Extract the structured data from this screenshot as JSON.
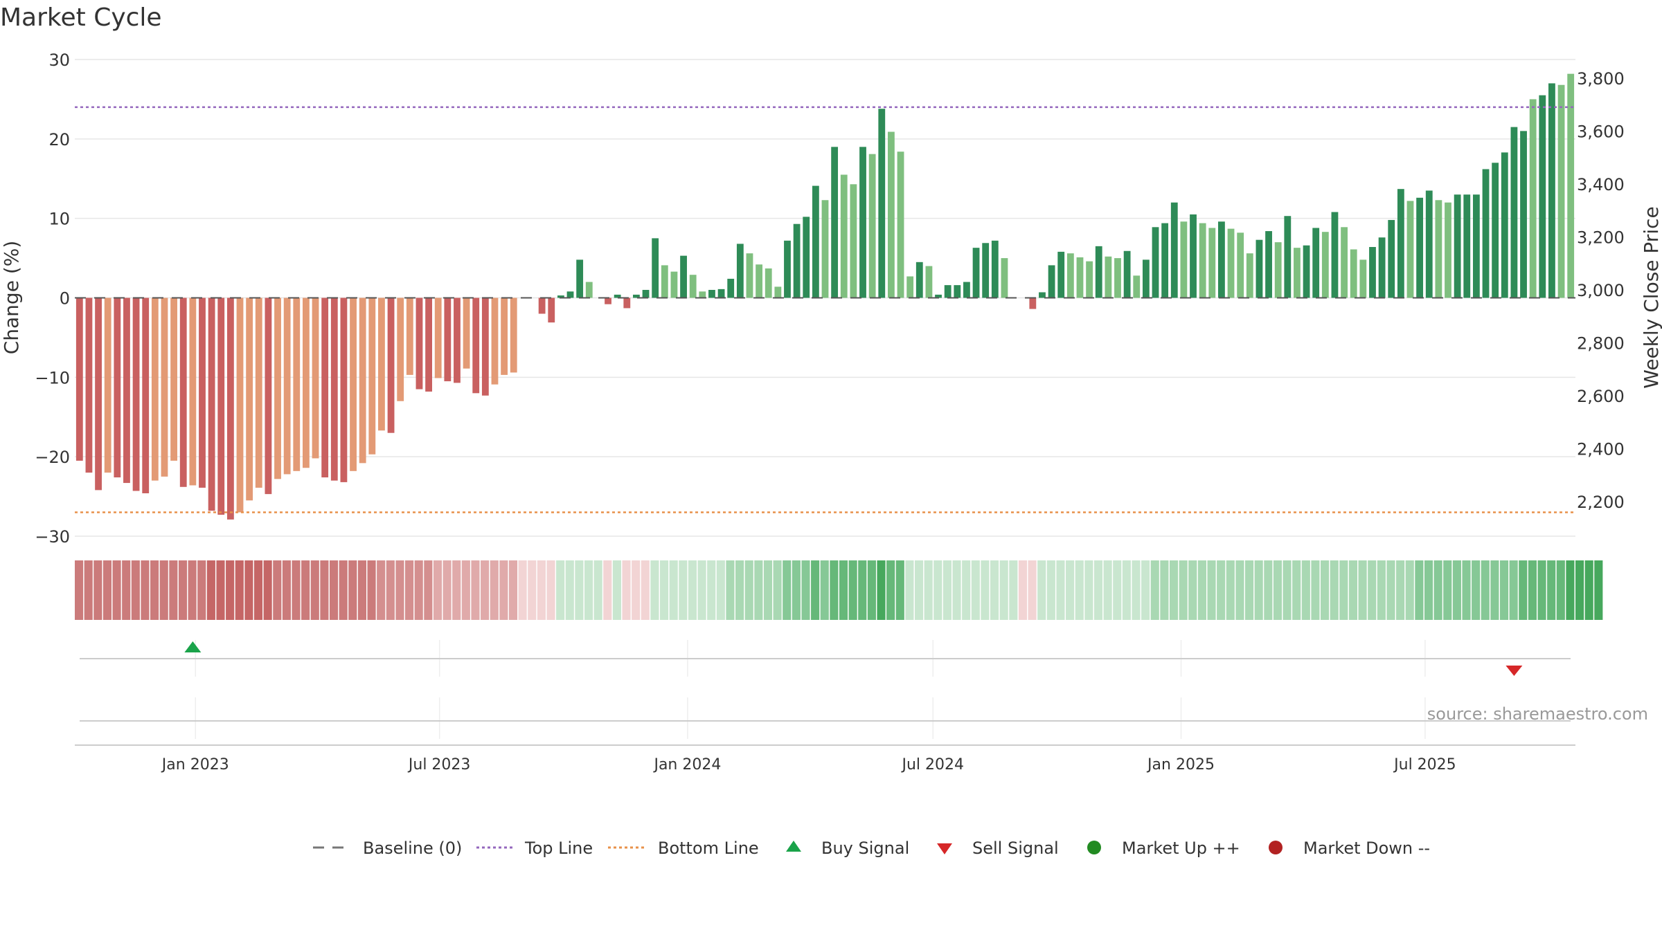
{
  "chart_data": {
    "type": "bar",
    "title": "Market Cycle",
    "ylabel": "Change (%)",
    "y2label": "Weekly Close Price",
    "ylim": [
      -30,
      30
    ],
    "y_ticks": [
      30,
      20,
      10,
      0,
      -10,
      -20,
      -30
    ],
    "y_tick_labels": [
      "30",
      "20",
      "10",
      "0",
      "−10",
      "−20",
      "−30"
    ],
    "y2lim": [
      2070,
      3870
    ],
    "y2_ticks": [
      3800,
      3600,
      3400,
      3200,
      3000,
      2800,
      2600,
      2400,
      2200
    ],
    "y2_tick_labels": [
      "3,800",
      "3,600",
      "3,400",
      "3,200",
      "3,000",
      "2,800",
      "2,600",
      "2,400",
      "2,200"
    ],
    "x_start": "2022-10-07",
    "x_tick_labels": [
      {
        "date": "2023-01-01",
        "label": "Jan 2023"
      },
      {
        "date": "2023-07-01",
        "label": "Jul 2023"
      },
      {
        "date": "2024-01-01",
        "label": "Jan 2024"
      },
      {
        "date": "2024-07-01",
        "label": "Jul 2024"
      },
      {
        "date": "2025-01-01",
        "label": "Jan 2025"
      },
      {
        "date": "2025-07-01",
        "label": "Jul 2025"
      }
    ],
    "top_line": 24,
    "bottom_line": -27,
    "grid": true,
    "legend_position": "bottom",
    "series": [
      {
        "name": "Weekly change",
        "values": [
          -20.5,
          -22,
          -24.2,
          -22,
          -22.6,
          -23.3,
          -24.3,
          -24.6,
          -23,
          -22.5,
          -20.5,
          -23.8,
          -23.6,
          -23.9,
          -26.8,
          -27.3,
          -27.9,
          -27,
          -25.5,
          -23.9,
          -24.7,
          -22.8,
          -22.2,
          -21.8,
          -21.4,
          -20.2,
          -22.6,
          -23,
          -23.2,
          -21.8,
          -20.8,
          -19.7,
          -16.7,
          -17,
          -13,
          -9.7,
          -11.5,
          -11.8,
          -10.1,
          -10.5,
          -10.7,
          -8.9,
          -12,
          -12.3,
          -10.9,
          -9.7,
          -9.4,
          0,
          0,
          -2,
          -3.1,
          0.3,
          0.8,
          4.8,
          2,
          0,
          -0.8,
          0.4,
          -1.3,
          0.4,
          1,
          7.5,
          4.1,
          3.3,
          5.3,
          2.9,
          0.8,
          1,
          1.1,
          2.4,
          6.8,
          5.6,
          4.2,
          3.7,
          1.4,
          7.2,
          9.3,
          10.2,
          14.1,
          12.3,
          19,
          15.5,
          14.3,
          19,
          18.1,
          23.8,
          20.9,
          18.4,
          2.7,
          4.5,
          4,
          0.4,
          1.6,
          1.6,
          2,
          6.3,
          6.9,
          7.2,
          5,
          0,
          0,
          -1.4,
          0.7,
          4.1,
          5.8,
          5.6,
          5.1,
          4.6,
          6.5,
          5.2,
          5,
          5.9,
          2.8,
          4.8,
          8.9,
          9.4,
          12,
          9.6,
          10.5,
          9.4,
          8.8,
          9.6,
          8.7,
          8.2,
          5.6,
          7.3,
          8.4,
          7,
          10.3,
          6.3,
          6.6,
          8.8,
          8.3,
          10.8,
          8.9,
          6.1,
          4.8,
          6.4,
          7.6,
          9.8,
          13.7,
          12.2,
          12.6,
          13.5,
          12.3,
          12,
          13,
          13,
          13,
          16.2,
          17,
          18.3,
          21.5,
          21,
          25,
          25.5,
          27,
          26.8,
          28.2
        ],
        "colors": [
          "#c96060",
          "#c96060",
          "#c96060",
          "#e39a75",
          "#c96060",
          "#c96060",
          "#c96060",
          "#c96060",
          "#e39a75",
          "#e39a75",
          "#e39a75",
          "#c96060",
          "#e39a75",
          "#c96060",
          "#c96060",
          "#c96060",
          "#c96060",
          "#e39a75",
          "#e39a75",
          "#e39a75",
          "#c96060",
          "#e39a75",
          "#e39a75",
          "#e39a75",
          "#e39a75",
          "#e39a75",
          "#c96060",
          "#c96060",
          "#c96060",
          "#e39a75",
          "#e39a75",
          "#e39a75",
          "#e39a75",
          "#c96060",
          "#e39a75",
          "#e39a75",
          "#c96060",
          "#c96060",
          "#e39a75",
          "#c96060",
          "#c96060",
          "#e39a75",
          "#c96060",
          "#c96060",
          "#e39a75",
          "#e39a75",
          "#e39a75",
          "#e39a75",
          "#e39a75",
          "#c96060",
          "#c96060",
          "#2e8b57",
          "#2e8b57",
          "#2e8b57",
          "#7fbf7f",
          "#2e8b57",
          "#c96060",
          "#2e8b57",
          "#c96060",
          "#2e8b57",
          "#2e8b57",
          "#2e8b57",
          "#7fbf7f",
          "#7fbf7f",
          "#2e8b57",
          "#7fbf7f",
          "#7fbf7f",
          "#2e8b57",
          "#2e8b57",
          "#2e8b57",
          "#2e8b57",
          "#7fbf7f",
          "#7fbf7f",
          "#7fbf7f",
          "#7fbf7f",
          "#2e8b57",
          "#2e8b57",
          "#2e8b57",
          "#2e8b57",
          "#7fbf7f",
          "#2e8b57",
          "#7fbf7f",
          "#7fbf7f",
          "#2e8b57",
          "#7fbf7f",
          "#2e8b57",
          "#7fbf7f",
          "#7fbf7f",
          "#7fbf7f",
          "#2e8b57",
          "#7fbf7f",
          "#2e8b57",
          "#2e8b57",
          "#2e8b57",
          "#2e8b57",
          "#2e8b57",
          "#2e8b57",
          "#2e8b57",
          "#7fbf7f",
          "#c96060",
          "#c96060",
          "#c96060",
          "#2e8b57",
          "#2e8b57",
          "#2e8b57",
          "#7fbf7f",
          "#7fbf7f",
          "#7fbf7f",
          "#2e8b57",
          "#7fbf7f",
          "#7fbf7f",
          "#2e8b57",
          "#7fbf7f",
          "#2e8b57",
          "#2e8b57",
          "#2e8b57",
          "#2e8b57",
          "#7fbf7f",
          "#2e8b57",
          "#7fbf7f",
          "#7fbf7f",
          "#2e8b57",
          "#7fbf7f",
          "#7fbf7f",
          "#7fbf7f",
          "#2e8b57",
          "#2e8b57",
          "#7fbf7f",
          "#2e8b57",
          "#7fbf7f",
          "#2e8b57",
          "#2e8b57",
          "#7fbf7f",
          "#2e8b57",
          "#7fbf7f",
          "#7fbf7f",
          "#7fbf7f",
          "#2e8b57",
          "#2e8b57",
          "#2e8b57",
          "#2e8b57",
          "#7fbf7f",
          "#2e8b57",
          "#2e8b57",
          "#7fbf7f",
          "#7fbf7f",
          "#2e8b57",
          "#2e8b57",
          "#2e8b57",
          "#2e8b57",
          "#2e8b57",
          "#2e8b57",
          "#2e8b57",
          "#2e8b57",
          "#7fbf7f",
          "#2e8b57",
          "#2e8b57",
          "#7fbf7f",
          "#7fbf7f",
          "#2e8b57"
        ]
      }
    ],
    "heat_strip": {
      "levels": [
        -4,
        -4,
        -4,
        -4,
        -4,
        -4,
        -4,
        -4,
        -4,
        -4,
        -4,
        -4,
        -4,
        -4,
        -5,
        -5,
        -5,
        -5,
        -5,
        -5,
        -5,
        -4,
        -4,
        -4,
        -4,
        -4,
        -4,
        -4,
        -4,
        -4,
        -4,
        -4,
        -3,
        -3,
        -3,
        -3,
        -3,
        -3,
        -2,
        -2,
        -2,
        -2,
        -2,
        -2,
        -2,
        -2,
        -2,
        -1,
        -1,
        -1,
        -1,
        1,
        1,
        1,
        1,
        1,
        -1,
        1,
        -1,
        -1,
        -1,
        1,
        1,
        1,
        1,
        1,
        1,
        1,
        1,
        2,
        2,
        2,
        2,
        2,
        2,
        3,
        3,
        3,
        4,
        3,
        4,
        4,
        4,
        4,
        4,
        5,
        4,
        4,
        1,
        1,
        1,
        1,
        1,
        1,
        1,
        1,
        1,
        1,
        1,
        1,
        -1,
        -1,
        1,
        1,
        1,
        1,
        1,
        1,
        1,
        1,
        1,
        1,
        1,
        1,
        2,
        2,
        2,
        2,
        2,
        2,
        2,
        2,
        2,
        2,
        2,
        2,
        2,
        2,
        2,
        2,
        2,
        2,
        2,
        2,
        2,
        2,
        2,
        2,
        2,
        2,
        2,
        2,
        3,
        3,
        3,
        3,
        3,
        3,
        3,
        3,
        3,
        3,
        3,
        4,
        4,
        4,
        4,
        4,
        5,
        5,
        5,
        5
      ]
    },
    "buy_signals": [
      "2022-12-30"
    ],
    "sell_signals": [
      "2025-09-05"
    ],
    "market_up_points": [],
    "market_down_points": [],
    "colors": {
      "strong_up": "#2e8b57",
      "up": "#7fbf7f",
      "strong_down": "#c96060",
      "down": "#e39a75",
      "top_line": "#9467bd",
      "bottom_line": "#e8914a",
      "baseline": "#555555",
      "buy": "#1aa34a",
      "sell": "#d62728",
      "market_up": "#228b22",
      "market_down": "#b22222"
    }
  },
  "source_note": "source: sharemaestro.com",
  "legend": {
    "baseline": "Baseline (0)",
    "top_line": "Top Line",
    "bottom_line": "Bottom Line",
    "buy_signal": "Buy Signal",
    "sell_signal": "Sell Signal",
    "market_up": "Market Up ++",
    "market_down": "Market Down --"
  }
}
